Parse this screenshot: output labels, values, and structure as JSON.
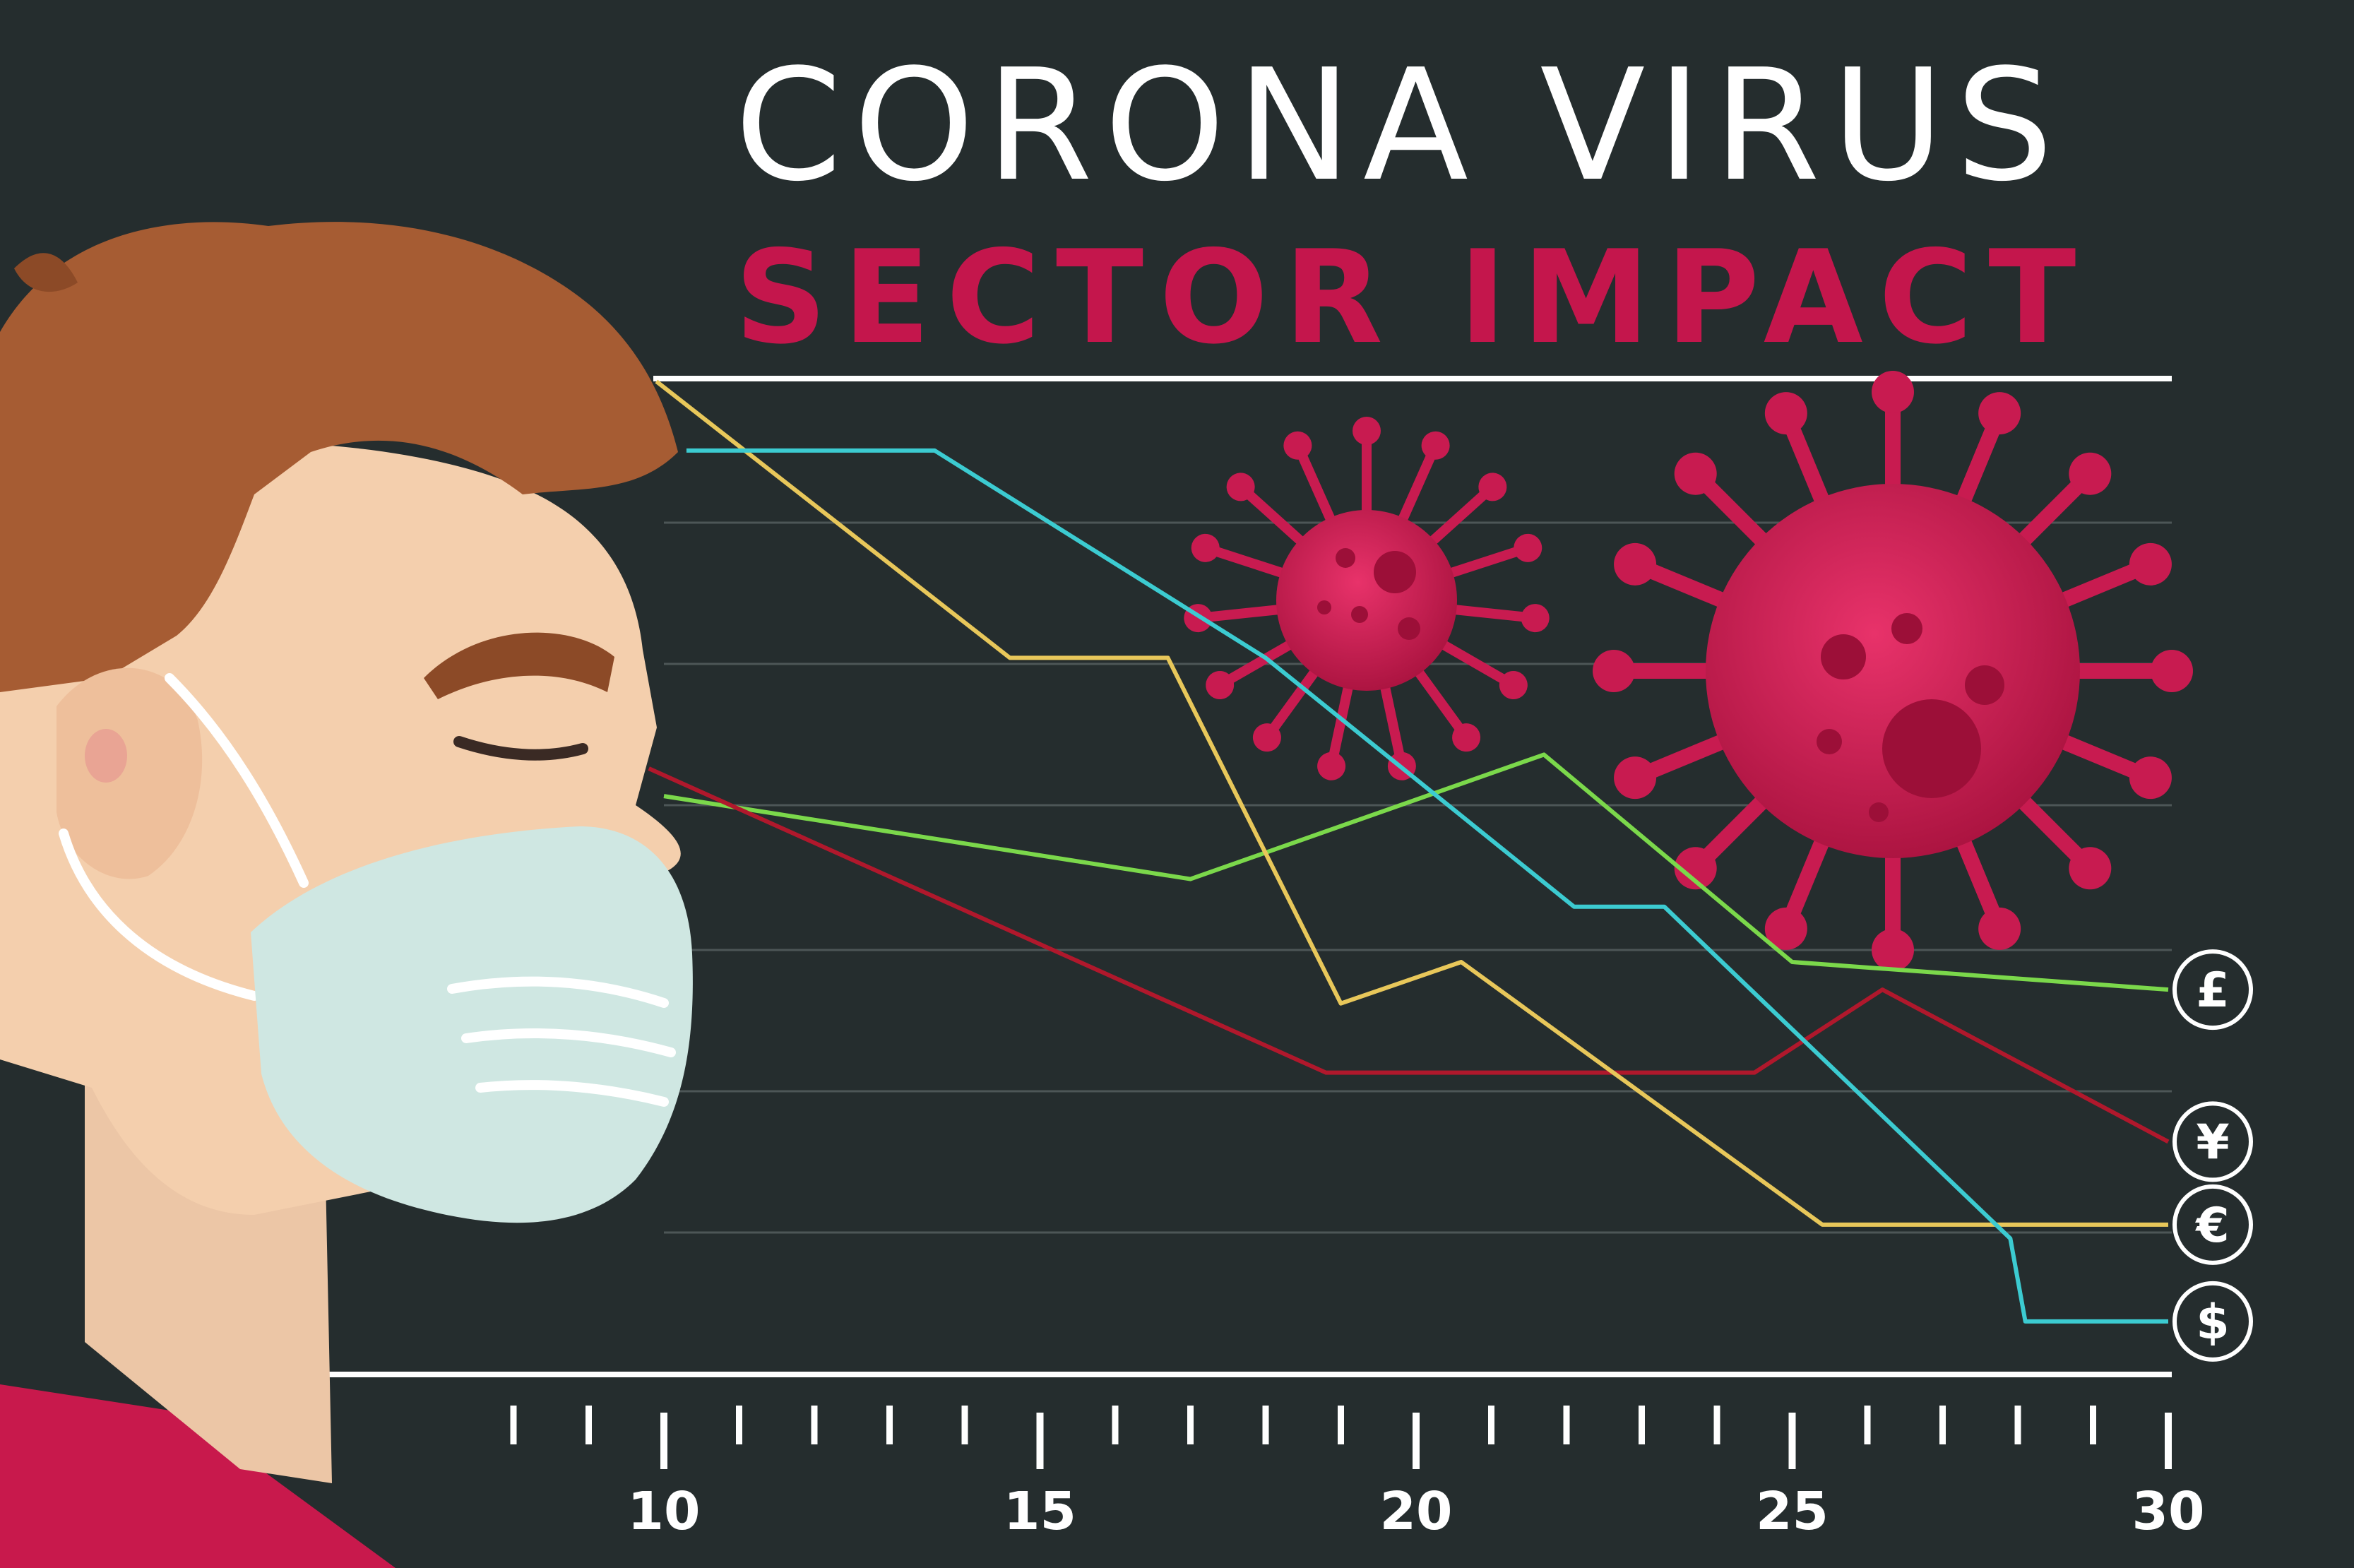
{
  "title": "CORONA VIRUS",
  "subtitle": "SECTOR IMPACT",
  "colors": {
    "background": "#252d2e",
    "title": "#ffffff",
    "subtitle": "#c4164c",
    "axis": "#ffffff",
    "grid": "#4d5657",
    "virus": "#c81b50"
  },
  "chart_data": {
    "type": "line",
    "xlim": [
      10,
      30
    ],
    "x_ticks": [
      10,
      15,
      20,
      25,
      30
    ],
    "minor_tick_step": 1,
    "y_ticks_shown": false,
    "grid": true,
    "legend": "right, circular currency markers at line ends",
    "series": [
      {
        "name": "£",
        "color": "#7bd84b",
        "points": [
          [
            10,
            4.0
          ],
          [
            17,
            3.4
          ],
          [
            21.7,
            4.3
          ],
          [
            25,
            2.8
          ],
          [
            30,
            2.6
          ]
        ]
      },
      {
        "name": "¥",
        "color": "#b0182c",
        "points": [
          [
            9.8,
            4.2
          ],
          [
            18.8,
            2.0
          ],
          [
            24.5,
            2.0
          ],
          [
            26.2,
            2.6
          ],
          [
            30,
            1.5
          ]
        ]
      },
      {
        "name": "€",
        "color": "#e8c75a",
        "points": [
          [
            9.9,
            7.0
          ],
          [
            14.6,
            5.0
          ],
          [
            16.7,
            5.0
          ],
          [
            19,
            2.5
          ],
          [
            20.6,
            2.8
          ],
          [
            25.4,
            0.9
          ],
          [
            30,
            0.9
          ]
        ]
      },
      {
        "name": "$",
        "color": "#3ccbd1",
        "points": [
          [
            10.3,
            6.5
          ],
          [
            13.6,
            6.5
          ],
          [
            18,
            5.0
          ],
          [
            22.1,
            3.2
          ],
          [
            23.3,
            3.2
          ],
          [
            27.9,
            0.8
          ],
          [
            28.1,
            0.2
          ],
          [
            30,
            0.2
          ]
        ]
      }
    ]
  }
}
